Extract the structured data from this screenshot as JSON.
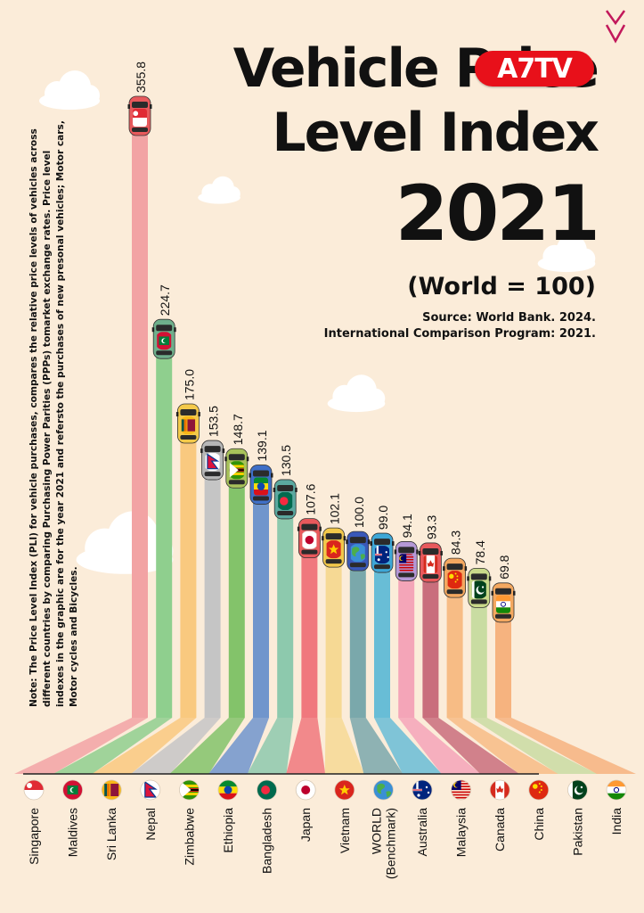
{
  "header": {
    "title_line1": "Vehicle Price",
    "title_line2": "Level Index",
    "title_line3": "2021",
    "subtitle": "(World = 100)",
    "source_line1": "Source: World Bank. 2024.",
    "source_line2": "International Comparison Program: 2021."
  },
  "note": "Note: The Price Level Index (PLI) for vehicle purchases, compares the relative price levels of vehicles across different countries by comparing Purchasing Power Parities (PPPs) tomarket exchange rates. Price level indexes in the graphic are for the year 2021 and  refersto the purchases of new presonal vehicles; Motor cars, Motor cycles and Bicycles.",
  "logo": {
    "text": "A7TV",
    "color": "#e8101a"
  },
  "colors": {
    "background": "#fbecd9",
    "cloud": "#ffffff"
  },
  "chart_data": {
    "type": "bar",
    "title": "Vehicle Price Level Index 2021",
    "subtitle": "(World = 100)",
    "xlabel": "",
    "ylabel": "",
    "ylim": [
      0,
      355.8
    ],
    "categories": [
      "Singapore",
      "Maldives",
      "Sri Lanka",
      "Nepal",
      "Zimbabwe",
      "Ethiopia",
      "Bangladesh",
      "Japan",
      "Vietnam",
      "WORLD\n(Benchmark)",
      "Australia",
      "Malaysia",
      "Canada",
      "China",
      "Pakistan",
      "India"
    ],
    "values": [
      355.8,
      224.7,
      175.0,
      153.5,
      148.7,
      139.1,
      130.5,
      107.6,
      102.1,
      100.0,
      99.0,
      94.1,
      93.3,
      84.3,
      78.4,
      69.8
    ],
    "value_labels": [
      "355.8",
      "224.7",
      "175.0",
      "153.5",
      "148.7",
      "139.1",
      "130.5",
      "107.6",
      "102.1",
      "100.0",
      "99.0",
      "94.1",
      "93.3",
      "84.3",
      "78.4",
      "69.8"
    ],
    "bar_colors": [
      "#f2a3a4",
      "#8fcf8e",
      "#f9c97f",
      "#c5c5c5",
      "#83c36a",
      "#7095cc",
      "#8dc9ad",
      "#f0787d",
      "#f6d994",
      "#7aa8ab",
      "#68bdd6",
      "#f4a5b8",
      "#c96e7c",
      "#f7bc85",
      "#c9dca2",
      "#f6b37f"
    ],
    "car_colors": [
      "#e8595c",
      "#6fb08c",
      "#f4c94a",
      "#b7b7b7",
      "#a8c25a",
      "#3f6fc7",
      "#5ba9a0",
      "#e8595c",
      "#f2c84b",
      "#3a58b8",
      "#3ea7d6",
      "#b598d6",
      "#e8595c",
      "#f4a860",
      "#c9d98a",
      "#f4a860"
    ],
    "flags": [
      "singapore",
      "maldives",
      "sri-lanka",
      "nepal",
      "zimbabwe",
      "ethiopia",
      "bangladesh",
      "japan",
      "vietnam",
      "world",
      "australia",
      "malaysia",
      "canada",
      "china",
      "pakistan",
      "india"
    ],
    "grid": false,
    "legend": "none"
  }
}
